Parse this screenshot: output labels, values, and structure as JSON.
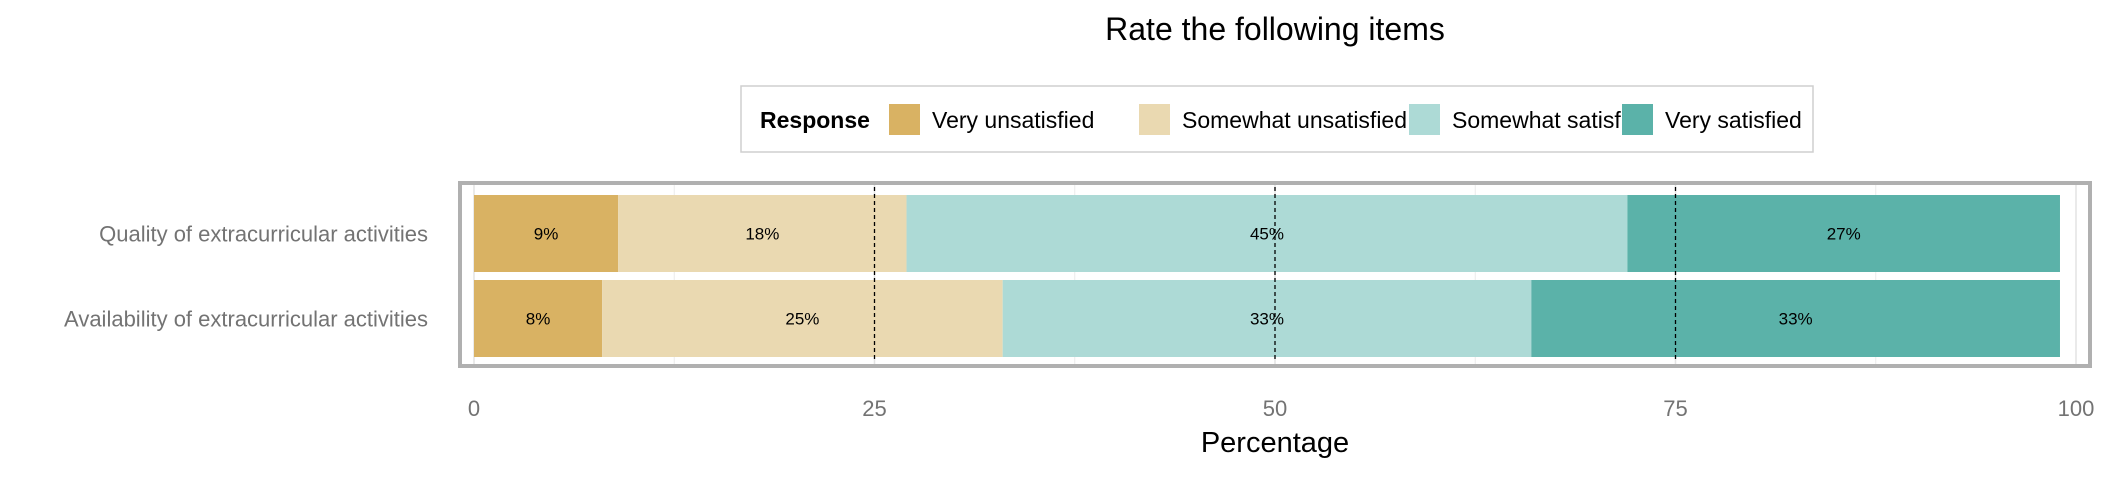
{
  "chart_data": {
    "type": "bar",
    "orientation": "horizontal",
    "stacked": true,
    "title": "Rate the following items",
    "xlabel": "Percentage",
    "ylabel": "",
    "xlim": [
      0,
      100
    ],
    "x_ticks": [
      0,
      25,
      50,
      75,
      100
    ],
    "reference_lines": [
      25,
      50,
      75
    ],
    "grid": true,
    "legend": {
      "title": "Response",
      "position": "top"
    },
    "categories": [
      "Quality of extracurricular activities",
      "Availability of extracurricular activities"
    ],
    "series": [
      {
        "name": "Very unsatisfied",
        "color": "#D9B263",
        "values": [
          9,
          8
        ],
        "labels": [
          "9%",
          "8%"
        ]
      },
      {
        "name": "Somewhat unsatisfied",
        "color": "#EAD9B1",
        "values": [
          18,
          25
        ],
        "labels": [
          "18%",
          "25%"
        ]
      },
      {
        "name": "Somewhat satisfied",
        "color": "#ADDAD6",
        "values": [
          45,
          33
        ],
        "labels": [
          "45%",
          "33%"
        ]
      },
      {
        "name": "Very satisfied",
        "color": "#5BB2A9",
        "values": [
          27,
          33
        ],
        "labels": [
          "27%",
          "33%"
        ]
      }
    ]
  }
}
